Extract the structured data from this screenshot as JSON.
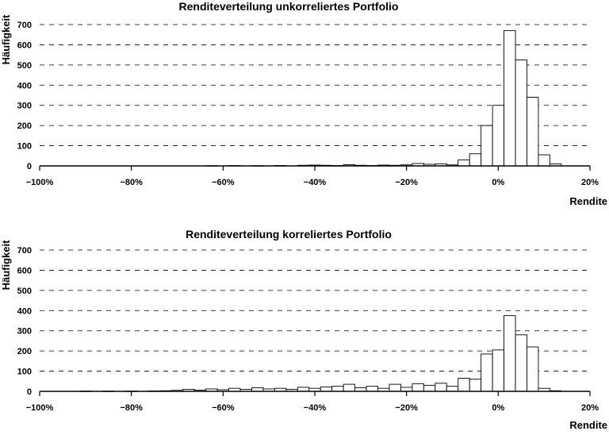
{
  "chart_data": [
    {
      "type": "bar",
      "title": "Renditeverteilung unkorreliertes Portfolio",
      "xlabel": "Rendite",
      "ylabel": "Häufigkeit",
      "xlim": [
        -100,
        20
      ],
      "ylim": [
        0,
        700
      ],
      "grid": "horizontal-dashed",
      "x_ticks": [
        "−100%",
        "−80%",
        "−60%",
        "−40%",
        "−20%",
        "0%",
        "20%"
      ],
      "y_ticks": [
        "0",
        "100",
        "200",
        "300",
        "400",
        "500",
        "600",
        "700"
      ],
      "bin_width": 2.5,
      "bins": [
        {
          "x": -62.5,
          "y": 1
        },
        {
          "x": -57.5,
          "y": 2
        },
        {
          "x": -52.5,
          "y": 1
        },
        {
          "x": -47.5,
          "y": 2
        },
        {
          "x": -42.5,
          "y": 3
        },
        {
          "x": -40,
          "y": 4
        },
        {
          "x": -37.5,
          "y": 3
        },
        {
          "x": -35,
          "y": 2
        },
        {
          "x": -32.5,
          "y": 6
        },
        {
          "x": -30,
          "y": 3
        },
        {
          "x": -27.5,
          "y": 2
        },
        {
          "x": -25,
          "y": 4
        },
        {
          "x": -22.5,
          "y": 3
        },
        {
          "x": -20,
          "y": 5
        },
        {
          "x": -17.5,
          "y": 12
        },
        {
          "x": -15,
          "y": 8
        },
        {
          "x": -12.5,
          "y": 10
        },
        {
          "x": -10,
          "y": 5
        },
        {
          "x": -7.5,
          "y": 30
        },
        {
          "x": -5,
          "y": 60
        },
        {
          "x": -2.5,
          "y": 200
        },
        {
          "x": 0,
          "y": 300
        },
        {
          "x": 2.5,
          "y": 670
        },
        {
          "x": 5,
          "y": 525
        },
        {
          "x": 7.5,
          "y": 340
        },
        {
          "x": 10,
          "y": 55
        },
        {
          "x": 12.5,
          "y": 10
        }
      ]
    },
    {
      "type": "bar",
      "title": "Renditeverteilung korreliertes Portfolio",
      "xlabel": "Rendite",
      "ylabel": "Häufigkeit",
      "xlim": [
        -100,
        20
      ],
      "ylim": [
        0,
        700
      ],
      "grid": "horizontal-dashed",
      "x_ticks": [
        "−100%",
        "−80%",
        "−60%",
        "−40%",
        "−20%",
        "0%",
        "20%"
      ],
      "y_ticks": [
        "0",
        "100",
        "200",
        "300",
        "400",
        "500",
        "600",
        "700"
      ],
      "bin_width": 2.5,
      "bins": [
        {
          "x": -90,
          "y": 1
        },
        {
          "x": -85,
          "y": 1
        },
        {
          "x": -80,
          "y": 1
        },
        {
          "x": -75,
          "y": 2
        },
        {
          "x": -72.5,
          "y": 3
        },
        {
          "x": -70,
          "y": 5
        },
        {
          "x": -67.5,
          "y": 10
        },
        {
          "x": -65,
          "y": 6
        },
        {
          "x": -62.5,
          "y": 12
        },
        {
          "x": -60,
          "y": 8
        },
        {
          "x": -57.5,
          "y": 15
        },
        {
          "x": -55,
          "y": 10
        },
        {
          "x": -52.5,
          "y": 18
        },
        {
          "x": -50,
          "y": 12
        },
        {
          "x": -47.5,
          "y": 15
        },
        {
          "x": -45,
          "y": 10
        },
        {
          "x": -42.5,
          "y": 20
        },
        {
          "x": -40,
          "y": 15
        },
        {
          "x": -37.5,
          "y": 22
        },
        {
          "x": -35,
          "y": 25
        },
        {
          "x": -32.5,
          "y": 35
        },
        {
          "x": -30,
          "y": 18
        },
        {
          "x": -27.5,
          "y": 25
        },
        {
          "x": -25,
          "y": 15
        },
        {
          "x": -22.5,
          "y": 35
        },
        {
          "x": -20,
          "y": 20
        },
        {
          "x": -17.5,
          "y": 38
        },
        {
          "x": -15,
          "y": 30
        },
        {
          "x": -12.5,
          "y": 40
        },
        {
          "x": -10,
          "y": 25
        },
        {
          "x": -7.5,
          "y": 65
        },
        {
          "x": -5,
          "y": 60
        },
        {
          "x": -2.5,
          "y": 185
        },
        {
          "x": 0,
          "y": 205
        },
        {
          "x": 2.5,
          "y": 375
        },
        {
          "x": 5,
          "y": 280
        },
        {
          "x": 7.5,
          "y": 220
        },
        {
          "x": 10,
          "y": 15
        },
        {
          "x": 12.5,
          "y": 3
        }
      ]
    }
  ]
}
